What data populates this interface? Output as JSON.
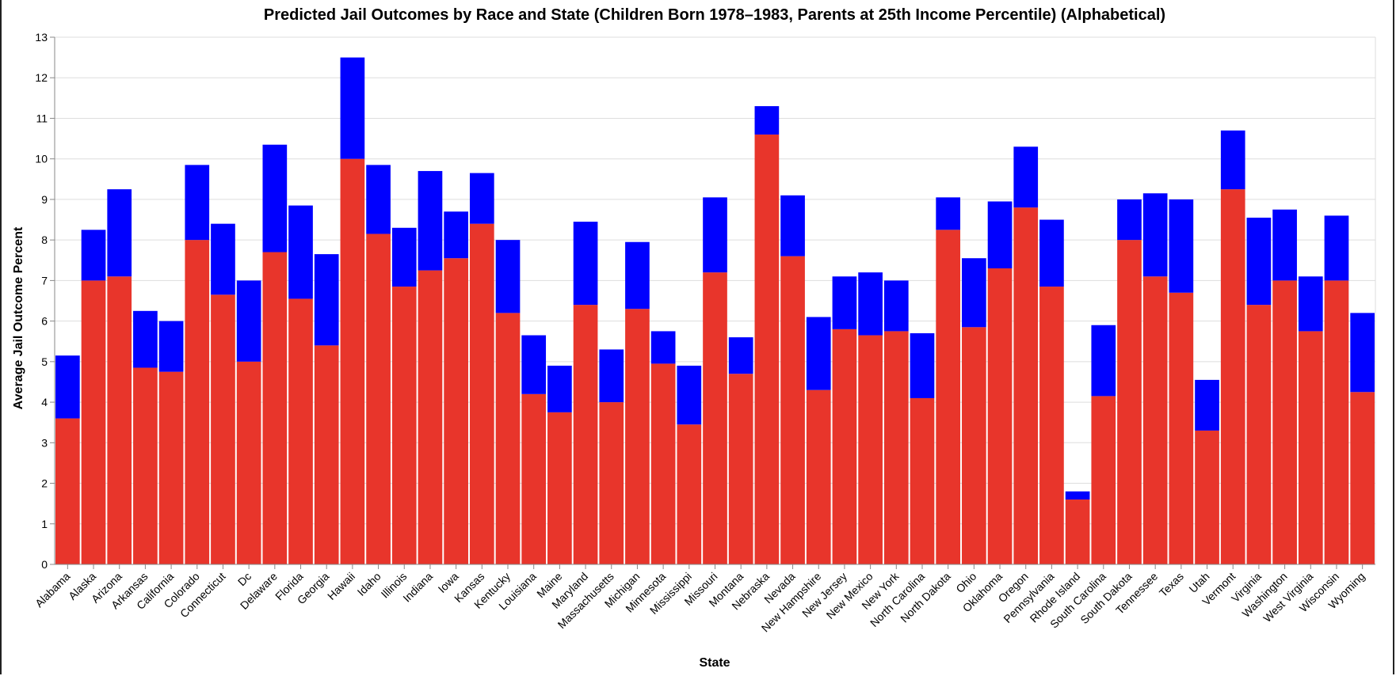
{
  "chart_data": {
    "type": "bar",
    "stacked": true,
    "title": "Predicted Jail Outcomes by Race and State (Children Born 1978–1983, Parents at 25th Income Percentile) (Alphabetical)",
    "xlabel": "State",
    "ylabel": "Average Jail Outcome Percent",
    "ylim": [
      0,
      13
    ],
    "yticks": [
      0,
      1,
      2,
      3,
      4,
      5,
      6,
      7,
      8,
      9,
      10,
      11,
      12,
      13
    ],
    "grid": true,
    "categories": [
      "Alabama",
      "Alaska",
      "Arizona",
      "Arkansas",
      "California",
      "Colorado",
      "Connecticut",
      "Dc",
      "Delaware",
      "Florida",
      "Georgia",
      "Hawaii",
      "Idaho",
      "Illinois",
      "Indiana",
      "Iowa",
      "Kansas",
      "Kentucky",
      "Louisiana",
      "Maine",
      "Maryland",
      "Massachusetts",
      "Michigan",
      "Minnesota",
      "Mississippi",
      "Missouri",
      "Montana",
      "Nebraska",
      "Nevada",
      "New Hampshire",
      "New Jersey",
      "New Mexico",
      "New York",
      "North Carolina",
      "North Dakota",
      "Ohio",
      "Oklahoma",
      "Oregon",
      "Pennsylvania",
      "Rhode Island",
      "South Carolina",
      "South Dakota",
      "Tennessee",
      "Texas",
      "Utah",
      "Vermont",
      "Virginia",
      "Washington",
      "West Virginia",
      "Wisconsin",
      "Wyoming"
    ],
    "series": [
      {
        "color": "#e8352b",
        "values": [
          3.6,
          7.0,
          7.1,
          4.85,
          4.75,
          8.0,
          6.65,
          5.0,
          7.7,
          6.55,
          5.4,
          10.0,
          8.15,
          6.85,
          7.25,
          7.55,
          8.4,
          6.2,
          4.2,
          3.75,
          6.4,
          4.0,
          6.3,
          4.95,
          3.45,
          7.2,
          4.7,
          10.6,
          7.6,
          4.3,
          5.8,
          5.65,
          5.75,
          4.1,
          8.25,
          5.85,
          7.3,
          8.8,
          6.85,
          1.6,
          4.15,
          8.0,
          7.1,
          6.7,
          3.3,
          9.25,
          6.4,
          7.0,
          5.75,
          7.0,
          4.25
        ]
      },
      {
        "color": "#0000ff",
        "values": [
          1.55,
          1.25,
          2.15,
          1.4,
          1.25,
          1.85,
          1.75,
          2.0,
          2.65,
          2.3,
          2.25,
          2.5,
          1.7,
          1.45,
          2.45,
          1.15,
          1.25,
          1.8,
          1.45,
          1.15,
          2.05,
          1.3,
          1.65,
          0.8,
          1.45,
          1.85,
          0.9,
          0.7,
          1.5,
          1.8,
          1.3,
          1.55,
          1.25,
          1.6,
          0.8,
          1.7,
          1.65,
          1.5,
          1.65,
          0.2,
          1.75,
          1.0,
          2.05,
          2.3,
          1.25,
          1.45,
          2.15,
          1.75,
          1.35,
          1.6,
          1.95
        ]
      }
    ]
  }
}
